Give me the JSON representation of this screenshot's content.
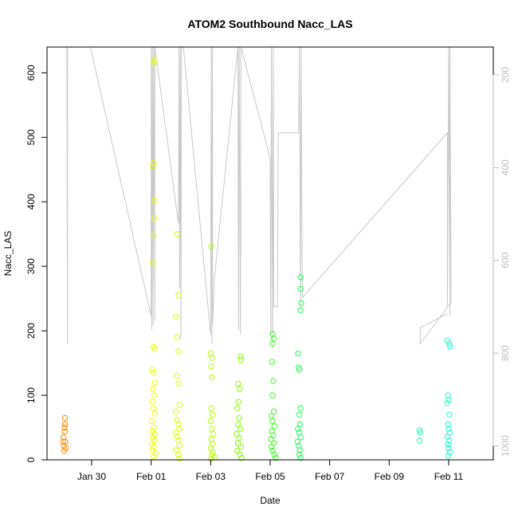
{
  "chart_data": {
    "type": "scatter",
    "title": "ATOM2 Southbound Nacc_LAS",
    "xlabel": "Date",
    "ylabel": "Nacc_LAS",
    "xlim": [
      "2016-01-28T12:00",
      "2016-02-12T12:00"
    ],
    "ylim": [
      0,
      640
    ],
    "x_ticks": [
      {
        "date": "2016-01-30",
        "label": "Jan 30"
      },
      {
        "date": "2016-02-01",
        "label": "Feb 01"
      },
      {
        "date": "2016-02-03",
        "label": "Feb 03"
      },
      {
        "date": "2016-02-05",
        "label": "Feb 05"
      },
      {
        "date": "2016-02-07",
        "label": "Feb 07"
      },
      {
        "date": "2016-02-09",
        "label": "Feb 09"
      },
      {
        "date": "2016-02-11",
        "label": "Feb 11"
      }
    ],
    "y_ticks": [
      0,
      100,
      200,
      300,
      400,
      500,
      600
    ],
    "right_axis": {
      "quantity": "altitude overlay (grey line, inverted)",
      "ylim": [
        1030,
        140
      ],
      "ticks": [
        200,
        400,
        600,
        800,
        1000
      ],
      "color": "#bdbdbd"
    },
    "marker": "open circle",
    "color_scale": "rainbow from orange (earliest flight) through yellow and green to cyan (latest flight)",
    "series": [
      {
        "color": "#ff8c00",
        "t": [
          "2016-01-29T01:00",
          "2016-01-29T03:00"
        ],
        "points": [
          [
            "2016-01-29T01:00",
            28
          ],
          [
            "2016-01-29T01:30",
            22
          ],
          [
            "2016-01-29T02:00",
            50
          ],
          [
            "2016-01-29T02:30",
            65
          ],
          [
            "2016-01-29T03:00",
            18
          ],
          [
            "2016-01-29T01:15",
            35
          ],
          [
            "2016-01-29T02:15",
            44
          ],
          [
            "2016-01-29T02:45",
            28
          ],
          [
            "2016-01-29T01:45",
            14
          ],
          [
            "2016-01-29T02:30",
            55
          ]
        ]
      },
      {
        "color": "#eaff00",
        "t": [
          "2016-02-01T00:00",
          "2016-02-01T05:00"
        ],
        "points": [
          [
            "2016-02-01T02:00",
            615
          ],
          [
            "2016-02-01T02:30",
            620
          ],
          [
            "2016-02-01T01:30",
            455
          ],
          [
            "2016-02-01T02:00",
            460
          ],
          [
            "2016-02-01T03:00",
            402
          ],
          [
            "2016-02-01T02:30",
            375
          ],
          [
            "2016-02-01T02:00",
            348
          ],
          [
            "2016-02-01T01:30",
            305
          ],
          [
            "2016-02-01T02:00",
            175
          ],
          [
            "2016-02-01T03:00",
            172
          ],
          [
            "2016-02-01T01:00",
            140
          ],
          [
            "2016-02-01T02:00",
            135
          ],
          [
            "2016-02-01T03:00",
            120
          ],
          [
            "2016-02-01T01:30",
            110
          ],
          [
            "2016-02-01T02:30",
            100
          ],
          [
            "2016-02-01T01:00",
            90
          ],
          [
            "2016-02-01T02:00",
            80
          ],
          [
            "2016-02-01T03:00",
            72
          ],
          [
            "2016-02-01T00:30",
            60
          ],
          [
            "2016-02-01T02:00",
            50
          ],
          [
            "2016-02-01T01:00",
            45
          ],
          [
            "2016-02-01T03:00",
            40
          ],
          [
            "2016-02-01T01:30",
            35
          ],
          [
            "2016-02-01T02:30",
            30
          ],
          [
            "2016-02-01T00:30",
            25
          ],
          [
            "2016-02-01T02:00",
            20
          ],
          [
            "2016-02-01T01:00",
            15
          ],
          [
            "2016-02-01T03:30",
            10
          ],
          [
            "2016-02-01T02:00",
            5
          ]
        ]
      },
      {
        "color": "#d7ff00",
        "t": [
          "2016-02-01T18:00",
          "2016-02-02T00:00"
        ],
        "points": [
          [
            "2016-02-01T21:00",
            350
          ],
          [
            "2016-02-01T22:00",
            255
          ],
          [
            "2016-02-01T20:00",
            222
          ],
          [
            "2016-02-01T21:00",
            190
          ],
          [
            "2016-02-01T22:00",
            168
          ],
          [
            "2016-02-01T21:00",
            130
          ],
          [
            "2016-02-01T22:00",
            118
          ],
          [
            "2016-02-01T23:00",
            85
          ],
          [
            "2016-02-01T20:00",
            75
          ],
          [
            "2016-02-01T21:00",
            62
          ],
          [
            "2016-02-01T22:00",
            55
          ],
          [
            "2016-02-01T23:00",
            48
          ],
          [
            "2016-02-01T20:00",
            42
          ],
          [
            "2016-02-01T21:00",
            36
          ],
          [
            "2016-02-01T22:00",
            30
          ],
          [
            "2016-02-01T23:00",
            22
          ],
          [
            "2016-02-01T20:00",
            15
          ],
          [
            "2016-02-01T22:00",
            8
          ],
          [
            "2016-02-01T23:00",
            2
          ]
        ]
      },
      {
        "color": "#b6ff00",
        "t": [
          "2016-02-03T00:00",
          "2016-02-03T04:00"
        ],
        "points": [
          [
            "2016-02-03T00:30",
            330
          ],
          [
            "2016-02-03T00:00",
            165
          ],
          [
            "2016-02-03T01:00",
            158
          ],
          [
            "2016-02-03T00:30",
            145
          ],
          [
            "2016-02-03T01:00",
            128
          ],
          [
            "2016-02-03T00:30",
            80
          ],
          [
            "2016-02-03T01:30",
            70
          ],
          [
            "2016-02-03T00:00",
            60
          ],
          [
            "2016-02-03T01:00",
            48
          ],
          [
            "2016-02-03T02:00",
            40
          ],
          [
            "2016-02-03T00:30",
            32
          ],
          [
            "2016-02-03T01:30",
            25
          ],
          [
            "2016-02-03T00:00",
            18
          ],
          [
            "2016-02-03T02:00",
            12
          ],
          [
            "2016-02-03T01:00",
            8
          ],
          [
            "2016-02-03T03:30",
            4
          ],
          [
            "2016-02-03T00:30",
            2
          ]
        ]
      },
      {
        "color": "#8cff00",
        "t": [
          "2016-02-03T20:00",
          "2016-02-04T02:00"
        ],
        "points": [
          [
            "2016-02-04T00:00",
            160
          ],
          [
            "2016-02-04T00:30",
            155
          ],
          [
            "2016-02-03T22:00",
            118
          ],
          [
            "2016-02-03T23:30",
            110
          ],
          [
            "2016-02-03T22:30",
            90
          ],
          [
            "2016-02-03T21:30",
            80
          ],
          [
            "2016-02-03T23:00",
            65
          ],
          [
            "2016-02-03T22:00",
            55
          ],
          [
            "2016-02-04T00:00",
            48
          ],
          [
            "2016-02-03T21:00",
            40
          ],
          [
            "2016-02-03T23:00",
            34
          ],
          [
            "2016-02-03T22:00",
            26
          ],
          [
            "2016-02-04T00:30",
            20
          ],
          [
            "2016-02-03T21:30",
            14
          ],
          [
            "2016-02-03T23:30",
            8
          ],
          [
            "2016-02-04T01:00",
            3
          ]
        ]
      },
      {
        "color": "#3cff20",
        "t": [
          "2016-02-05T00:00",
          "2016-02-05T06:00"
        ],
        "points": [
          [
            "2016-02-05T02:00",
            195
          ],
          [
            "2016-02-05T03:00",
            188
          ],
          [
            "2016-02-05T02:00",
            180
          ],
          [
            "2016-02-05T01:30",
            152
          ],
          [
            "2016-02-05T02:30",
            122
          ],
          [
            "2016-02-05T02:00",
            100
          ],
          [
            "2016-02-05T03:00",
            75
          ],
          [
            "2016-02-05T01:00",
            68
          ],
          [
            "2016-02-05T02:00",
            60
          ],
          [
            "2016-02-05T03:30",
            52
          ],
          [
            "2016-02-05T01:30",
            45
          ],
          [
            "2016-02-05T02:30",
            38
          ],
          [
            "2016-02-05T00:30",
            32
          ],
          [
            "2016-02-05T03:00",
            26
          ],
          [
            "2016-02-05T01:00",
            20
          ],
          [
            "2016-02-05T02:00",
            14
          ],
          [
            "2016-02-05T03:30",
            8
          ],
          [
            "2016-02-05T04:30",
            3
          ]
        ]
      },
      {
        "color": "#20ff55",
        "t": [
          "2016-02-05T20:00",
          "2016-02-06T02:00"
        ],
        "points": [
          [
            "2016-02-06T00:30",
            283
          ],
          [
            "2016-02-06T00:30",
            265
          ],
          [
            "2016-02-06T01:00",
            243
          ],
          [
            "2016-02-06T00:30",
            232
          ],
          [
            "2016-02-05T22:30",
            165
          ],
          [
            "2016-02-05T23:00",
            143
          ],
          [
            "2016-02-05T23:30",
            140
          ],
          [
            "2016-02-06T00:30",
            80
          ],
          [
            "2016-02-05T23:30",
            70
          ],
          [
            "2016-02-06T00:00",
            55
          ],
          [
            "2016-02-05T22:30",
            48
          ],
          [
            "2016-02-05T23:30",
            42
          ],
          [
            "2016-02-06T00:30",
            35
          ],
          [
            "2016-02-05T22:00",
            28
          ],
          [
            "2016-02-05T23:00",
            22
          ],
          [
            "2016-02-06T00:00",
            15
          ],
          [
            "2016-02-05T23:30",
            8
          ],
          [
            "2016-02-06T00:30",
            3
          ]
        ]
      },
      {
        "color": "#20ffaa",
        "t": [
          "2016-02-10T00:00",
          "2016-02-10T02:00"
        ],
        "points": [
          [
            "2016-02-10T00:30",
            46
          ],
          [
            "2016-02-10T01:00",
            42
          ],
          [
            "2016-02-10T00:30",
            30
          ]
        ]
      },
      {
        "color": "#20ffcf",
        "t": [
          "2016-02-10T22:00",
          "2016-02-11T04:00"
        ],
        "points": [
          [
            "2016-02-10T23:00",
            185
          ],
          [
            "2016-02-11T00:30",
            180
          ],
          [
            "2016-02-11T01:00",
            176
          ],
          [
            "2016-02-10T23:30",
            100
          ],
          [
            "2016-02-11T00:00",
            93
          ],
          [
            "2016-02-10T23:00",
            88
          ],
          [
            "2016-02-11T00:30",
            70
          ],
          [
            "2016-02-10T23:30",
            55
          ],
          [
            "2016-02-11T00:00",
            48
          ],
          [
            "2016-02-11T01:00",
            42
          ],
          [
            "2016-02-10T23:00",
            36
          ],
          [
            "2016-02-11T00:30",
            30
          ],
          [
            "2016-02-10T23:30",
            24
          ],
          [
            "2016-02-11T00:00",
            18
          ],
          [
            "2016-02-11T01:00",
            12
          ],
          [
            "2016-02-10T23:30",
            6
          ]
        ]
      }
    ],
    "overlay_line": {
      "color": "#c8c8c8",
      "description": "altitude track plotted against the right (inverted) axis",
      "points": [
        [
          "2016-01-29T04:00",
          140
        ],
        [
          "2016-01-29T04:00",
          165
        ],
        [
          "2016-01-29T04:30",
          780
        ],
        [
          "2016-01-29T04:30",
          140
        ],
        [
          "2016-01-29T23:00",
          140
        ],
        [
          "2016-02-01T00:00",
          720
        ],
        [
          "2016-02-01T00:00",
          140
        ],
        [
          "2016-02-01T00:30",
          750
        ],
        [
          "2016-02-01T01:00",
          140
        ],
        [
          "2016-02-01T01:30",
          740
        ],
        [
          "2016-02-01T02:00",
          140
        ],
        [
          "2016-02-01T03:00",
          730
        ],
        [
          "2016-02-01T03:00",
          140
        ],
        [
          "2016-02-01T22:00",
          520
        ],
        [
          "2016-02-01T22:30",
          140
        ],
        [
          "2016-02-01T23:00",
          660
        ],
        [
          "2016-02-01T23:30",
          140
        ],
        [
          "2016-02-02T00:00",
          770
        ],
        [
          "2016-02-02T00:30",
          140
        ],
        [
          "2016-02-02T02:00",
          140
        ],
        [
          "2016-02-03T00:00",
          760
        ],
        [
          "2016-02-03T00:30",
          140
        ],
        [
          "2016-02-03T01:00",
          780
        ],
        [
          "2016-02-03T01:30",
          140
        ],
        [
          "2016-02-03T01:30",
          740
        ],
        [
          "2016-02-03T03:00",
          640
        ],
        [
          "2016-02-03T22:00",
          140
        ],
        [
          "2016-02-03T22:30",
          750
        ],
        [
          "2016-02-03T23:00",
          140
        ],
        [
          "2016-02-04T00:00",
          760
        ],
        [
          "2016-02-04T00:30",
          140
        ],
        [
          "2016-02-05T00:00",
          380
        ],
        [
          "2016-02-05T00:30",
          760
        ],
        [
          "2016-02-05T01:00",
          140
        ],
        [
          "2016-02-05T02:00",
          790
        ],
        [
          "2016-02-05T02:30",
          140
        ],
        [
          "2016-02-05T03:00",
          700
        ],
        [
          "2016-02-05T06:00",
          700
        ],
        [
          "2016-02-05T06:30",
          325
        ],
        [
          "2016-02-05T23:00",
          325
        ],
        [
          "2016-02-05T23:30",
          140
        ],
        [
          "2016-02-06T00:30",
          700
        ],
        [
          "2016-02-06T01:00",
          140
        ],
        [
          "2016-02-06T02:00",
          680
        ],
        [
          "2016-02-10T23:00",
          325
        ],
        [
          "2016-02-10T23:00",
          700
        ],
        [
          "2016-02-11T00:00",
          140
        ],
        [
          "2016-02-11T01:00",
          720
        ],
        [
          "2016-02-11T01:00",
          140
        ],
        [
          "2016-02-11T02:00",
          690
        ],
        [
          "2016-02-10T01:00",
          780
        ],
        [
          "2016-02-10T01:00",
          745
        ],
        [
          "2016-02-10T23:00",
          715
        ]
      ]
    }
  }
}
